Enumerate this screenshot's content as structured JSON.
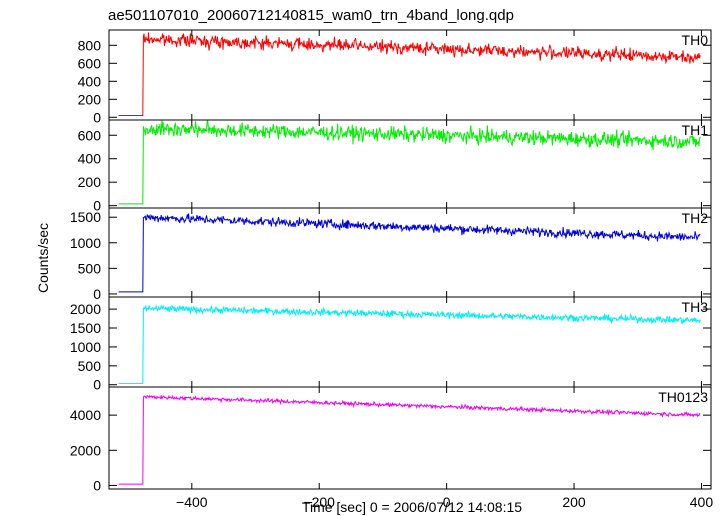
{
  "chart_data": {
    "type": "line",
    "title": "ae501107010_20060712140815_wam0_trn_4band_long.qdp",
    "xlabel": "Time [sec] 0 = 2006/07/12 14:08:15",
    "ylabel": "Counts/sec",
    "xlim": [
      -530,
      415
    ],
    "x_ticks": [
      -400,
      -200,
      0,
      200,
      400
    ],
    "x_tick_labels": [
      "−400",
      "−200",
      "0",
      "200",
      "400"
    ],
    "grid": false,
    "panels": [
      {
        "name": "TH0",
        "color": "#ff0000",
        "ylim": [
          -30,
          970
        ],
        "y_ticks": [
          0,
          200,
          400,
          600,
          800
        ],
        "pre_level": 20,
        "onset": -476,
        "peak": 870,
        "end": 665,
        "noise": 35
      },
      {
        "name": "TH1",
        "color": "#00ee00",
        "ylim": [
          -20,
          730
        ],
        "y_ticks": [
          0,
          200,
          400,
          600
        ],
        "pre_level": 15,
        "onset": -476,
        "peak": 660,
        "end": 545,
        "noise": 32
      },
      {
        "name": "TH2",
        "color": "#0000dd",
        "ylim": [
          -60,
          1680
        ],
        "y_ticks": [
          0,
          500,
          1000,
          1500
        ],
        "pre_level": 40,
        "onset": -476,
        "peak": 1500,
        "end": 1100,
        "noise": 45
      },
      {
        "name": "TH3",
        "color": "#00eeee",
        "ylim": [
          -60,
          2320
        ],
        "y_ticks": [
          0,
          500,
          1000,
          1500,
          2000
        ],
        "pre_level": 35,
        "onset": -476,
        "peak": 2020,
        "end": 1700,
        "noise": 45
      },
      {
        "name": "TH0123",
        "color": "#ee00ee",
        "ylim": [
          -200,
          5600
        ],
        "y_ticks": [
          0,
          2000,
          4000
        ],
        "pre_level": 80,
        "onset": -476,
        "peak": 5050,
        "end": 4000,
        "noise": 55
      }
    ]
  }
}
